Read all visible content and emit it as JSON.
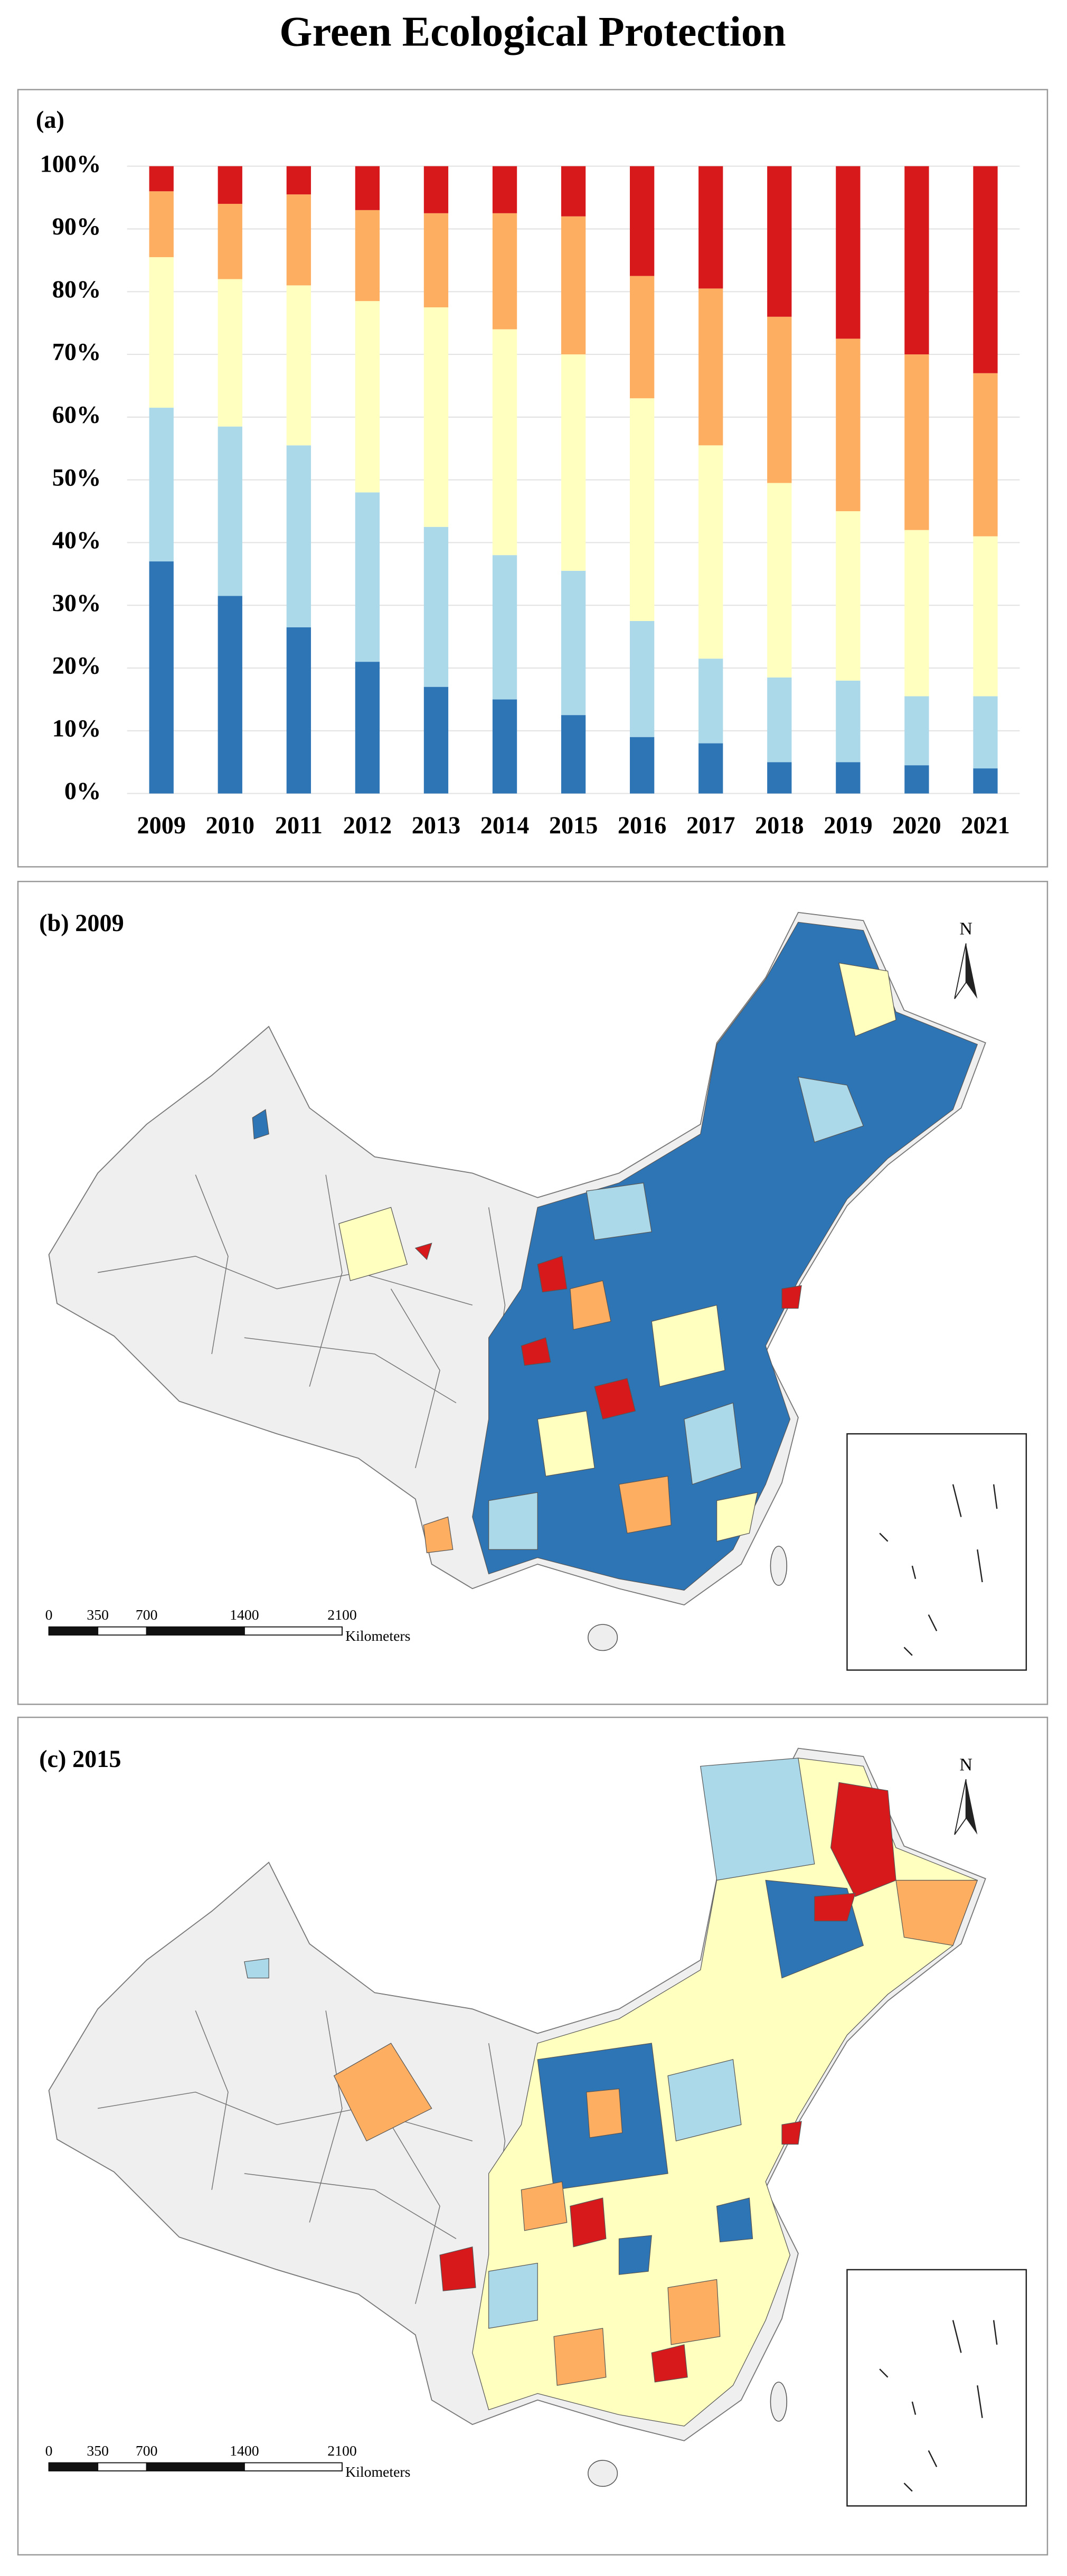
{
  "title": "Green Ecological Protection",
  "chart_data": {
    "type": "stacked_bar",
    "panel_label": "(a)",
    "categories": [
      "2009",
      "2010",
      "2011",
      "2012",
      "2013",
      "2014",
      "2015",
      "2016",
      "2017",
      "2018",
      "2019",
      "2020",
      "2021"
    ],
    "series": [
      {
        "color": "#2e75b6",
        "values": [
          37,
          31.5,
          26.5,
          21,
          17,
          15,
          12.5,
          9,
          8,
          5,
          5,
          4.5,
          4
        ]
      },
      {
        "color": "#abd9e9",
        "values": [
          24.5,
          27,
          29,
          27,
          25.5,
          23,
          23,
          18.5,
          13.5,
          13.5,
          13,
          11,
          11.5
        ]
      },
      {
        "color": "#ffffbf",
        "values": [
          24,
          23.5,
          25.5,
          30.5,
          35,
          36,
          34.5,
          35.5,
          34,
          31,
          27,
          26.5,
          25.5
        ]
      },
      {
        "color": "#fdae61",
        "values": [
          10.5,
          12,
          14.5,
          14.5,
          15,
          18.5,
          22,
          19.5,
          25,
          26.5,
          27.5,
          28,
          26
        ]
      },
      {
        "color": "#d7191c",
        "values": [
          4,
          6,
          4.5,
          7,
          7.5,
          7.5,
          8,
          17.5,
          19.5,
          24,
          27.5,
          30,
          33
        ]
      }
    ],
    "ylim": [
      0,
      100
    ],
    "yticks": [
      {
        "value": 0,
        "label": "0%"
      },
      {
        "value": 10,
        "label": "10%"
      },
      {
        "value": 20,
        "label": "20%"
      },
      {
        "value": 30,
        "label": "30%"
      },
      {
        "value": 40,
        "label": "40%"
      },
      {
        "value": 50,
        "label": "50%"
      },
      {
        "value": 60,
        "label": "60%"
      },
      {
        "value": 70,
        "label": "70%"
      },
      {
        "value": 80,
        "label": "80%"
      },
      {
        "value": 90,
        "label": "90%"
      },
      {
        "value": 100,
        "label": "100%"
      }
    ],
    "grid": true
  },
  "maps": [
    {
      "label": "(b) 2009",
      "north": "N",
      "scale_ticks": [
        0,
        350,
        700,
        1400,
        2100
      ],
      "scale_unit": "Kilometers"
    },
    {
      "label": "(c) 2015",
      "north": "N",
      "scale_ticks": [
        0,
        350,
        700,
        1400,
        2100
      ],
      "scale_unit": "Kilometers"
    }
  ]
}
